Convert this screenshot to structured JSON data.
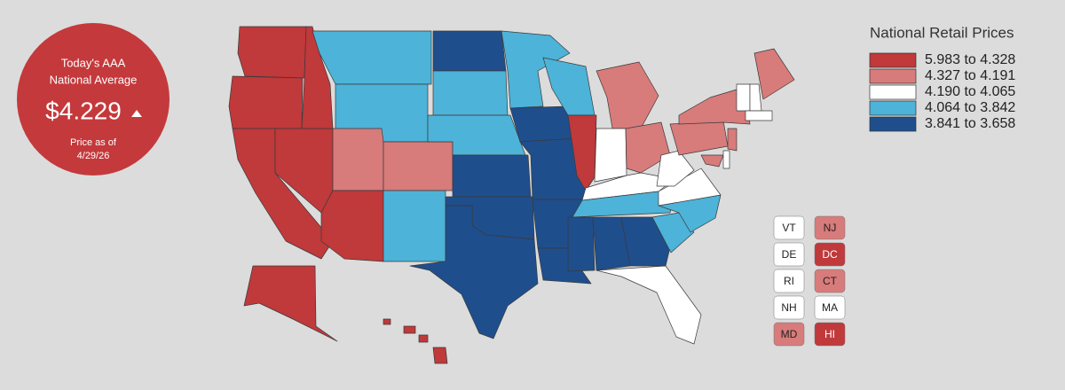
{
  "badge": {
    "line1": "Today's AAA",
    "line2": "National Average",
    "price": "$4.229",
    "note1": "Price as of",
    "note2": "4/29/26",
    "color": "#c4393b"
  },
  "legend": {
    "title": "National Retail Prices",
    "items": [
      {
        "label": "5.983 to 4.328",
        "color": "#c0393b"
      },
      {
        "label": "4.327 to 4.191",
        "color": "#d87b7b"
      },
      {
        "label": "4.190 to 4.065",
        "color": "#ffffff"
      },
      {
        "label": "4.064 to 3.842",
        "color": "#4db3d8"
      },
      {
        "label": "3.841 to 3.658",
        "color": "#1f4e8c"
      }
    ]
  },
  "small_states": [
    {
      "label": "VT"
    },
    {
      "label": "NJ"
    },
    {
      "label": "DE"
    },
    {
      "label": "DC"
    },
    {
      "label": "RI"
    },
    {
      "label": "CT"
    },
    {
      "label": "NH"
    },
    {
      "label": "MA"
    },
    {
      "label": "MD"
    },
    {
      "label": "HI"
    }
  ]
}
